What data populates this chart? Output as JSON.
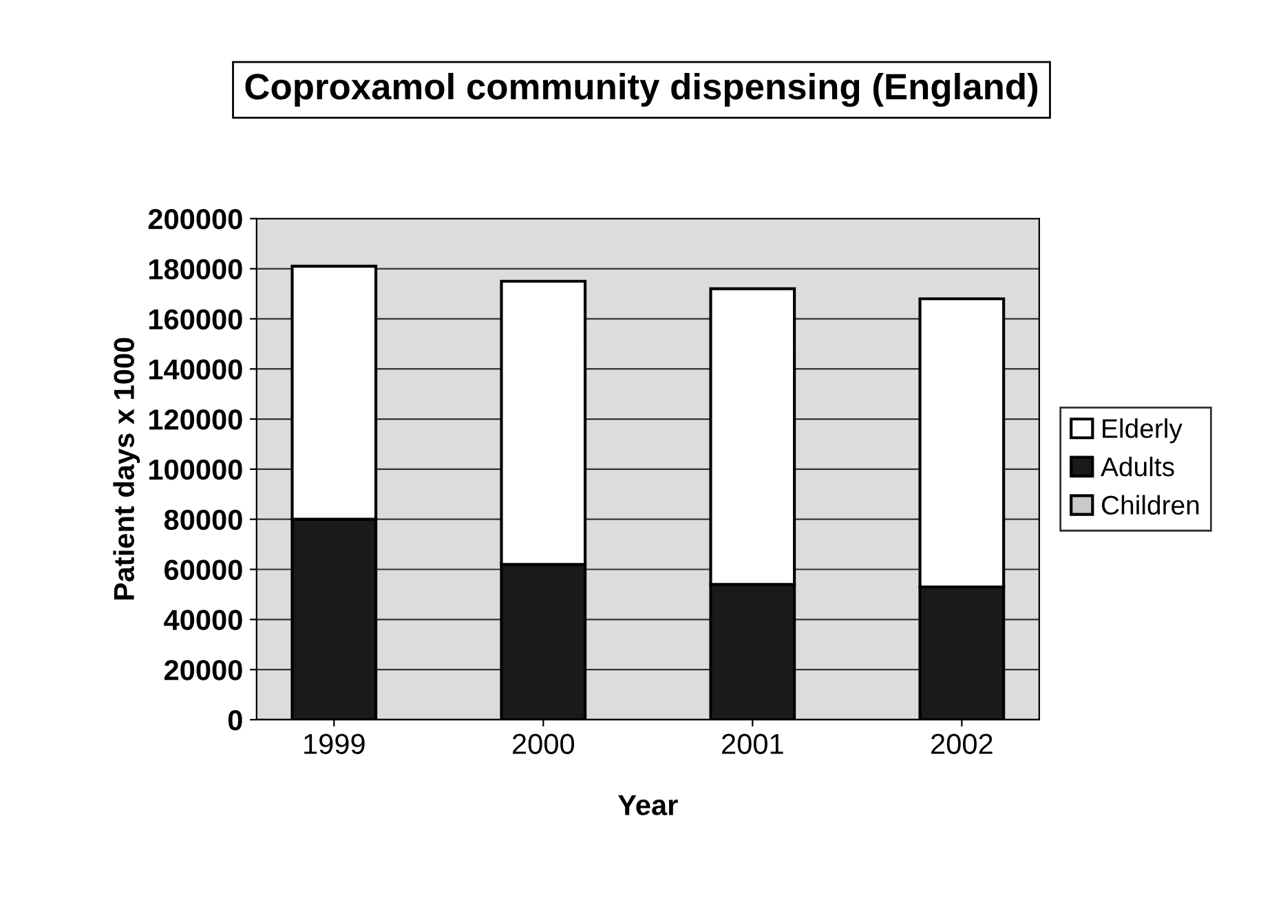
{
  "chart_data": {
    "type": "bar",
    "title": "Coproxamol community dispensing (England)",
    "xlabel": "Year",
    "ylabel": "Patient days x 1000",
    "categories": [
      "1999",
      "2000",
      "2001",
      "2002"
    ],
    "stacked": true,
    "series": [
      {
        "name": "Children",
        "color": "#c8c8c8",
        "values": [
          null,
          null,
          null,
          null
        ]
      },
      {
        "name": "Adults",
        "color": "#1a1a1a",
        "values": [
          80000,
          62000,
          54000,
          53000
        ]
      },
      {
        "name": "Elderly",
        "color": "#ffffff",
        "values": [
          101000,
          113000,
          118000,
          115000
        ]
      }
    ],
    "ylim": [
      0,
      200000
    ],
    "yticks": [
      0,
      20000,
      40000,
      60000,
      80000,
      100000,
      120000,
      140000,
      160000,
      180000,
      200000
    ],
    "grid": "y",
    "legend": "right"
  }
}
